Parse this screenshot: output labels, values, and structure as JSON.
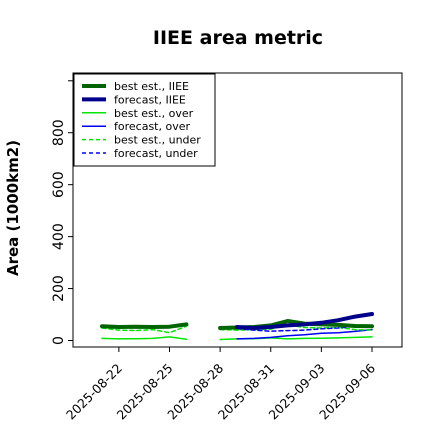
{
  "chart_data": {
    "type": "line",
    "title": "IIEE area metric",
    "xlabel": "",
    "ylabel": "Area (1000km2)",
    "x": [
      "2025-08-21",
      "2025-08-22",
      "2025-08-23",
      "2025-08-24",
      "2025-08-25",
      "2025-08-26",
      "2025-08-27",
      "2025-08-28",
      "2025-08-29",
      "2025-08-30",
      "2025-08-31",
      "2025-09-01",
      "2025-09-02",
      "2025-09-03",
      "2025-09-04",
      "2025-09-05",
      "2025-09-06"
    ],
    "xticks": [
      "2025-08-22",
      "2025-08-25",
      "2025-08-28",
      "2025-08-31",
      "2025-09-03",
      "2025-09-06"
    ],
    "highlight_tick": "2025-08-28",
    "highlight_color": "#2e8b2e",
    "ylim": [
      -25,
      1030
    ],
    "yticks": [
      0,
      200,
      400,
      600,
      800
    ],
    "grid": false,
    "legend_placement": "top-left",
    "series": [
      {
        "name": "best est., IIEE",
        "color": "#006400",
        "width": 4,
        "dash": "",
        "values": [
          55,
          52,
          53,
          52,
          53,
          62,
          null,
          48,
          50,
          52,
          58,
          75,
          65,
          62,
          60,
          56,
          55
        ]
      },
      {
        "name": "forecast, IIEE",
        "color": "#00008b",
        "width": 4,
        "dash": "",
        "values": [
          null,
          null,
          null,
          null,
          null,
          null,
          null,
          null,
          52,
          48,
          52,
          58,
          62,
          68,
          78,
          92,
          102
        ]
      },
      {
        "name": "best est., over",
        "color": "#00e600",
        "width": 1.5,
        "dash": "",
        "values": [
          8,
          6,
          7,
          8,
          14,
          5,
          null,
          4,
          6,
          7,
          10,
          6,
          8,
          9,
          10,
          12,
          14
        ]
      },
      {
        "name": "forecast, over",
        "color": "#0000ff",
        "width": 1.5,
        "dash": "",
        "values": [
          null,
          null,
          null,
          null,
          null,
          null,
          null,
          null,
          6,
          8,
          12,
          18,
          22,
          28,
          30,
          35,
          42
        ]
      },
      {
        "name": "best est., under",
        "color": "#00e600",
        "width": 1.5,
        "dash": "4,3",
        "values": [
          48,
          40,
          38,
          42,
          30,
          55,
          null,
          42,
          40,
          42,
          44,
          60,
          50,
          48,
          50,
          42,
          40
        ]
      },
      {
        "name": "forecast, under",
        "color": "#0000ff",
        "width": 1.5,
        "dash": "4,3",
        "values": [
          null,
          null,
          null,
          null,
          null,
          null,
          null,
          null,
          45,
          40,
          36,
          38,
          40,
          45,
          48,
          55,
          58
        ]
      }
    ]
  }
}
